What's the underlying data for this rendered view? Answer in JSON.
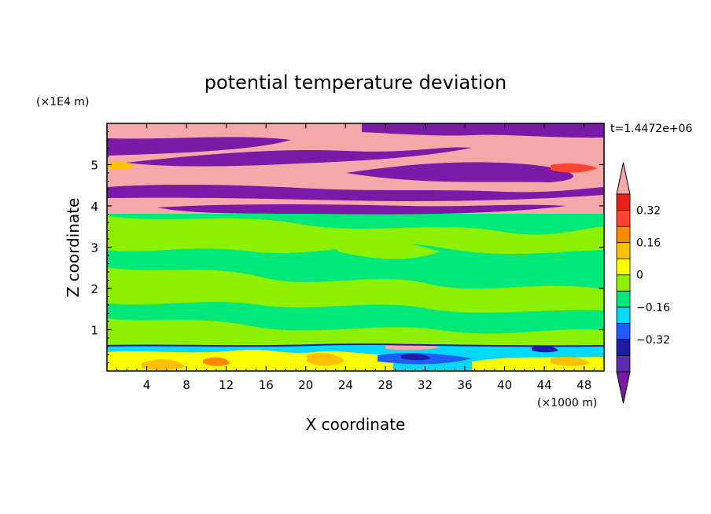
{
  "chart_data": {
    "type": "heatmap",
    "title": "potential temperature deviation",
    "xlabel": "X coordinate",
    "ylabel": "Z coordinate",
    "x_unit": "(×1000 m)",
    "y_unit": "(×1E4 m)",
    "time_label": "t=1.4472e+06",
    "xlim": [
      0,
      50
    ],
    "ylim": [
      0,
      6
    ],
    "x_ticks": [
      "4",
      "8",
      "12",
      "16",
      "20",
      "24",
      "28",
      "32",
      "36",
      "40",
      "44",
      "48"
    ],
    "y_ticks": [
      "1",
      "2",
      "3",
      "4",
      "5"
    ],
    "colorbar": {
      "levels": [
        -0.48,
        -0.4,
        -0.32,
        -0.24,
        -0.16,
        -0.08,
        0,
        0.08,
        0.16,
        0.24,
        0.32,
        0.4,
        0.48
      ],
      "colors": [
        "#7a1aa6",
        "#5a2db0",
        "#1c1ca8",
        "#1f5cff",
        "#00d8ff",
        "#00e87a",
        "#8cf000",
        "#ffff00",
        "#ffc000",
        "#ff8800",
        "#ff4433",
        "#e8201a",
        "#f6a8a8"
      ],
      "tick_labels": [
        "0.32",
        "0.16",
        "0",
        "−0.16",
        "−0.32"
      ],
      "extend": "both"
    },
    "legend": "right"
  },
  "colors": {
    "pink": "#f6a8a8",
    "purple": "#7a1aa6",
    "green": "#00e87a",
    "lime": "#8cf000"
  }
}
